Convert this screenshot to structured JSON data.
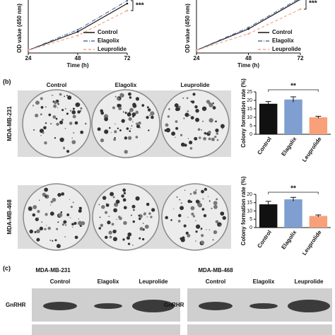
{
  "chart_data": [
    {
      "type": "line",
      "ylabel": "OD value (450 nm)",
      "xlabel": "Time (h)",
      "x": [
        24,
        48,
        72
      ],
      "xlim": [
        24,
        72
      ],
      "xticks": [
        24,
        48,
        72
      ],
      "ylim": [
        0,
        2
      ],
      "annotation": "***",
      "series": [
        {
          "name": "Control",
          "color": "#111111",
          "line_style": "solid",
          "values": [
            0.1,
            0.75,
            1.75
          ]
        },
        {
          "name": "Elagolix",
          "color": "#5a6f9e",
          "line_style": "dashdot",
          "values": [
            0.1,
            0.82,
            1.85
          ]
        },
        {
          "name": "Leuprolide",
          "color": "#f4a582",
          "line_style": "dashed",
          "values": [
            0.1,
            0.62,
            1.5
          ]
        }
      ]
    },
    {
      "type": "line",
      "ylabel": "OD value (450 nm)",
      "xlabel": "Time (h)",
      "x": [
        24,
        48,
        72
      ],
      "xlim": [
        24,
        72
      ],
      "xticks": [
        24,
        48,
        72
      ],
      "ylim": [
        0,
        2
      ],
      "annotation": "***",
      "series": [
        {
          "name": "Control",
          "color": "#111111",
          "line_style": "solid",
          "values": [
            0.1,
            0.85,
            1.9
          ]
        },
        {
          "name": "Elagolix",
          "color": "#5a6f9e",
          "line_style": "dashdot",
          "values": [
            0.1,
            0.9,
            1.95
          ]
        },
        {
          "name": "Leuprolide",
          "color": "#f4a582",
          "line_style": "dashed",
          "values": [
            0.1,
            0.68,
            1.55
          ]
        }
      ]
    },
    {
      "type": "bar",
      "ylabel": "Colony formation rate (%)",
      "categories": [
        "Control",
        "Elagolix",
        "Leuprolide"
      ],
      "values": [
        18,
        20.5,
        10
      ],
      "errors": [
        1.3,
        1.6,
        0.6
      ],
      "colors": [
        "#111111",
        "#7f9fd1",
        "#f7a07a"
      ],
      "ylim": [
        0,
        25
      ],
      "yticks": [
        0,
        5,
        10,
        15,
        20,
        25
      ],
      "annotation": "**"
    },
    {
      "type": "bar",
      "ylabel": "Colony formation rate (%)",
      "categories": [
        "Control",
        "Elagolix",
        "Leuprolide"
      ],
      "values": [
        14,
        17,
        7
      ],
      "errors": [
        1.8,
        1.2,
        0.6
      ],
      "colors": [
        "#111111",
        "#7f9fd1",
        "#f7a07a"
      ],
      "ylim": [
        0,
        20
      ],
      "yticks": [
        0,
        5,
        10,
        15,
        20
      ],
      "annotation": "**"
    }
  ],
  "panel_b": {
    "label": "(b)",
    "columns": [
      "Control",
      "Elagolix",
      "Leuprolide"
    ],
    "rows": [
      "MDA-MB-231",
      "MDA-MB-468"
    ]
  },
  "panel_c": {
    "label": "(c)",
    "blots": [
      {
        "cell_line": "MDA-MB-231",
        "columns": [
          "Control",
          "Elagolix",
          "Leuprolide"
        ],
        "protein": "GnRHR"
      },
      {
        "cell_line": "MDA-MB-468",
        "columns": [
          "Control",
          "Elagolix",
          "Leuprolide"
        ],
        "protein": "GnRHR"
      }
    ]
  }
}
